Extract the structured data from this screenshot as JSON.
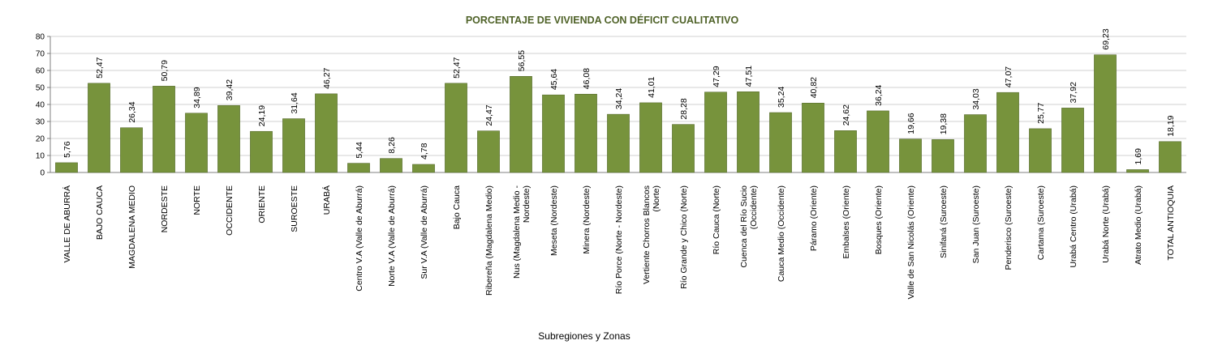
{
  "colors": {
    "bar": "#77933C",
    "bar_stroke": "#4F6228",
    "title": "#4F6228",
    "grid": "#D0D0D0",
    "axis": "#808080"
  },
  "chart_data": {
    "type": "bar",
    "title": "PORCENTAJE DE VIVIENDA CON DÉFICIT CUALITATIVO",
    "xlabel": "Subregiones y Zonas",
    "ylabel": "",
    "ylim": [
      0,
      80
    ],
    "yticks": [
      0,
      10,
      20,
      30,
      40,
      50,
      60,
      70,
      80
    ],
    "grid": true,
    "legend": "none",
    "categories": [
      [
        "VALLE DE ABURRÁ"
      ],
      [
        "BAJO CAUCA"
      ],
      [
        "MAGDALENA MEDIO"
      ],
      [
        "NORDESTE"
      ],
      [
        "NORTE"
      ],
      [
        "OCCIDENTE"
      ],
      [
        "ORIENTE"
      ],
      [
        "SUROESTE"
      ],
      [
        "URABÁ"
      ],
      [
        "Centro V.A (Valle de Aburrá)"
      ],
      [
        "Norte V.A (Valle de Aburrá)"
      ],
      [
        "Sur V.A (Valle de Aburrá)"
      ],
      [
        "Bajo Cauca"
      ],
      [
        "Ribereña  (Magdalena Medio)"
      ],
      [
        "Nus  (Magdalena Medio -",
        "Nordeste)"
      ],
      [
        "Meseta  (Nordeste)"
      ],
      [
        "Minera  (Nordeste)"
      ],
      [
        "Río Porce  (Norte - Nordeste)"
      ],
      [
        "Vertiente Chorros Blancos",
        "(Norte)"
      ],
      [
        "Río Grande y Chico  (Norte)"
      ],
      [
        "Río Cauca  (Norte)"
      ],
      [
        "Cuenca del Río Sucio",
        "(Occidente)"
      ],
      [
        "Cauca Medio  (Occidente)"
      ],
      [
        "Páramo  (Oriente)"
      ],
      [
        "Embalses  (Oriente)"
      ],
      [
        "Bosques  (Oriente)"
      ],
      [
        "Valle de San Nicolás  (Oriente)"
      ],
      [
        "Sinifaná  (Suroeste)"
      ],
      [
        "San Juan  (Suroeste)"
      ],
      [
        "Penderisco  (Suroeste)"
      ],
      [
        "Cartama  (Suroeste)"
      ],
      [
        "Urabá Centro  (Urabá)"
      ],
      [
        "Urabá Norte  (Urabá)"
      ],
      [
        "Atrato Medio  (Urabá)"
      ],
      [
        "TOTAL ANTIOQUIA"
      ]
    ],
    "values": [
      5.76,
      52.47,
      26.34,
      50.79,
      34.89,
      39.42,
      24.19,
      31.64,
      46.27,
      5.44,
      8.26,
      4.78,
      52.47,
      24.47,
      56.55,
      45.64,
      46.08,
      34.24,
      41.01,
      28.28,
      47.29,
      47.51,
      35.24,
      40.82,
      24.62,
      36.24,
      19.66,
      19.38,
      34.03,
      47.07,
      25.77,
      37.92,
      69.23,
      1.69,
      18.19
    ],
    "data_labels": [
      "5,76",
      "52,47",
      "26,34",
      "50,79",
      "34,89",
      "39,42",
      "24,19",
      "31,64",
      "46,27",
      "5,44",
      "8,26",
      "4,78",
      "52,47",
      "24,47",
      "56,55",
      "45,64",
      "46,08",
      "34,24",
      "41,01",
      "28,28",
      "47,29",
      "47,51",
      "35,24",
      "40,82",
      "24,62",
      "36,24",
      "19,66",
      "19,38",
      "34,03",
      "47,07",
      "25,77",
      "37,92",
      "69,23",
      "1,69",
      "18,19"
    ]
  }
}
